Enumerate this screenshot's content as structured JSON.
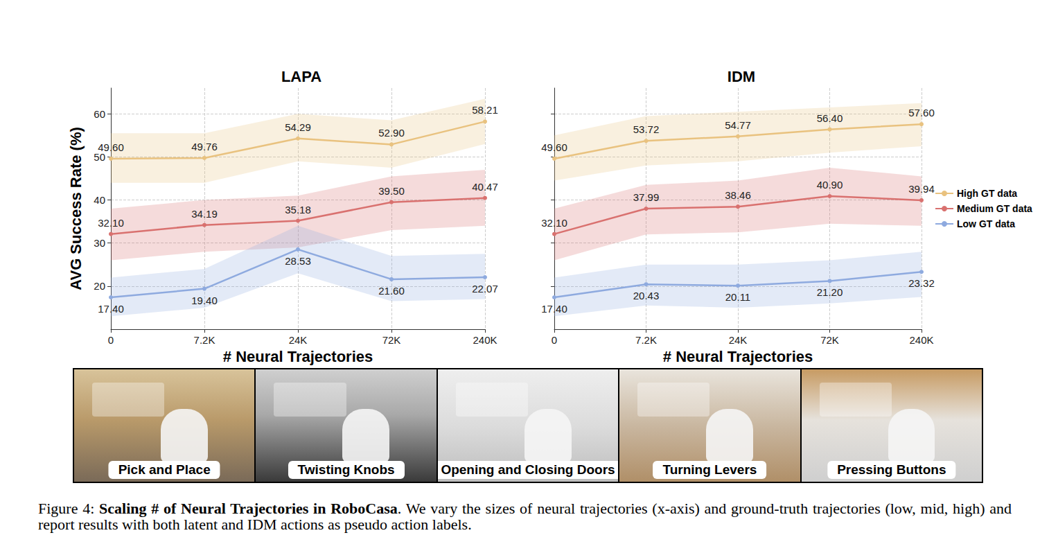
{
  "chart_data": [
    {
      "type": "line",
      "title": "LAPA",
      "x_label": "# Neural Trajectories",
      "y_label": "AVG Success Rate (%)",
      "categories": [
        "0",
        "7.2K",
        "24K",
        "72K",
        "240K"
      ],
      "ylim": [
        10,
        66
      ],
      "yticks": [
        20,
        30,
        40,
        50,
        60
      ],
      "grid": true,
      "data_labels": true,
      "marker": "circle",
      "series": [
        {
          "name": "High GT data",
          "color": "#e9c27f",
          "values": [
            49.6,
            49.76,
            54.29,
            52.9,
            58.21
          ],
          "value_labels": [
            "49.60",
            "49.76",
            "54.29",
            "52.90",
            "58.21"
          ],
          "lower": [
            44,
            44,
            49,
            47.5,
            53
          ],
          "upper": [
            55.5,
            55.5,
            60,
            58.5,
            63.5
          ]
        },
        {
          "name": "Medium GT data",
          "color": "#d9716f",
          "values": [
            32.1,
            34.19,
            35.18,
            39.5,
            40.47
          ],
          "value_labels": [
            "32.10",
            "34.19",
            "35.18",
            "39.50",
            "40.47"
          ],
          "lower": [
            26,
            28,
            29,
            33,
            34
          ],
          "upper": [
            38,
            40,
            41,
            45.5,
            47
          ]
        },
        {
          "name": "Low GT data",
          "color": "#8eaadf",
          "values": [
            17.4,
            19.4,
            28.53,
            21.6,
            22.07
          ],
          "value_labels": [
            "17.40",
            "19.40",
            "28.53",
            "21.60",
            "22.07"
          ],
          "lower": [
            13,
            15,
            23,
            16.5,
            17
          ],
          "upper": [
            22,
            24,
            34,
            27,
            27.5
          ]
        }
      ]
    },
    {
      "type": "line",
      "title": "IDM",
      "x_label": "# Neural Trajectories",
      "categories": [
        "0",
        "7.2K",
        "24K",
        "72K",
        "240K"
      ],
      "ylim": [
        10,
        66
      ],
      "yticks": [
        20,
        30,
        40,
        50,
        60
      ],
      "grid": true,
      "data_labels": true,
      "marker": "circle",
      "tick_labels": "x",
      "legend": "right",
      "series": [
        {
          "name": "High GT data",
          "color": "#e9c27f",
          "values": [
            49.6,
            53.72,
            54.77,
            56.4,
            57.6
          ],
          "value_labels": [
            "49.60",
            "53.72",
            "54.77",
            "56.40",
            "57.60"
          ],
          "lower": [
            44.5,
            48,
            49,
            51,
            52.5
          ],
          "upper": [
            55,
            59.5,
            60.5,
            61.5,
            62.5
          ]
        },
        {
          "name": "Medium GT data",
          "color": "#d9716f",
          "values": [
            32.1,
            37.99,
            38.46,
            40.9,
            39.94
          ],
          "value_labels": [
            "32.10",
            "37.99",
            "38.46",
            "40.90",
            "39.94"
          ],
          "lower": [
            26,
            32,
            32.5,
            34.5,
            34
          ],
          "upper": [
            38,
            43.5,
            44.5,
            47.5,
            45.5
          ]
        },
        {
          "name": "Low GT data",
          "color": "#8eaadf",
          "values": [
            17.4,
            20.43,
            20.11,
            21.2,
            23.32
          ],
          "value_labels": [
            "17.40",
            "20.43",
            "20.11",
            "21.20",
            "23.32"
          ],
          "lower": [
            13,
            15.5,
            15,
            16,
            17.5
          ],
          "upper": [
            22,
            25,
            25,
            26,
            28
          ]
        }
      ]
    }
  ],
  "image_strip": [
    "Pick and Place",
    "Twisting Knobs",
    "Opening and Closing Doors",
    "Turning Levers",
    "Pressing Buttons"
  ],
  "caption": {
    "label": "Figure 4:",
    "title": "Scaling # of Neural Trajectories in RoboCasa",
    "text": ". We vary the sizes of neural trajectories (x-axis) and ground-truth trajectories (low, mid, high) and report results with both latent and IDM actions as pseudo action labels."
  }
}
